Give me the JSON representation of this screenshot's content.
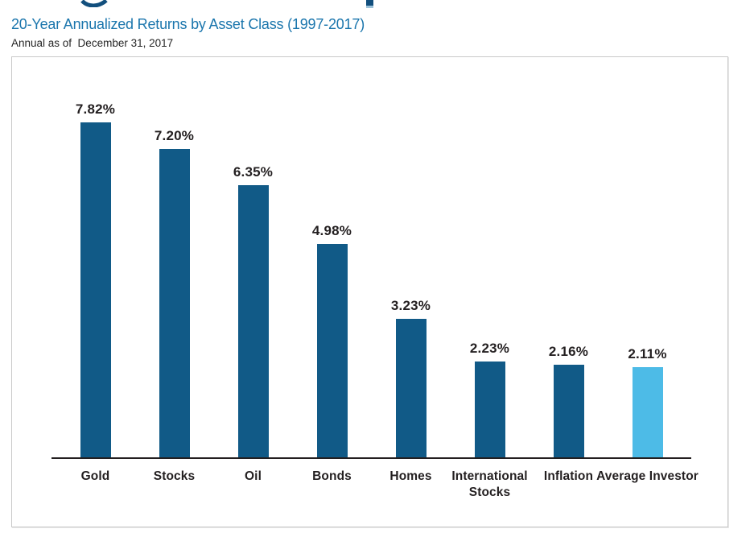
{
  "header": {
    "title": "20-Year Annualized Returns by Asset Class (1997-2017)",
    "dateline": "Annual as of  December 31, 2017"
  },
  "chart_data": {
    "type": "bar",
    "title": "20-Year Annualized Returns by Asset Class (1997-2017)",
    "subtitle": "Annual as of December 31, 2017",
    "categories": [
      "Gold",
      "Stocks",
      "Oil",
      "Bonds",
      "Homes",
      "International Stocks",
      "Inflation",
      "Average Investor"
    ],
    "values": [
      7.82,
      7.2,
      6.35,
      4.98,
      3.23,
      2.23,
      2.16,
      2.11
    ],
    "value_labels": [
      "7.82%",
      "7.20%",
      "6.35%",
      "4.98%",
      "3.23%",
      "2.23%",
      "2.16%",
      "2.11%"
    ],
    "xlabel": "",
    "ylabel": "",
    "ylim": [
      0,
      8.5
    ],
    "grid": false,
    "legend": false,
    "bar_color": "#115a87",
    "highlight_color": "#4dbbe7",
    "highlight_index": 7,
    "axis_color": "#231f20"
  },
  "colors": {
    "headline_navy": "#124f7d",
    "title_blue": "#1b76ad",
    "text_dark": "#231f20",
    "box_border": "#c9c9c9"
  }
}
